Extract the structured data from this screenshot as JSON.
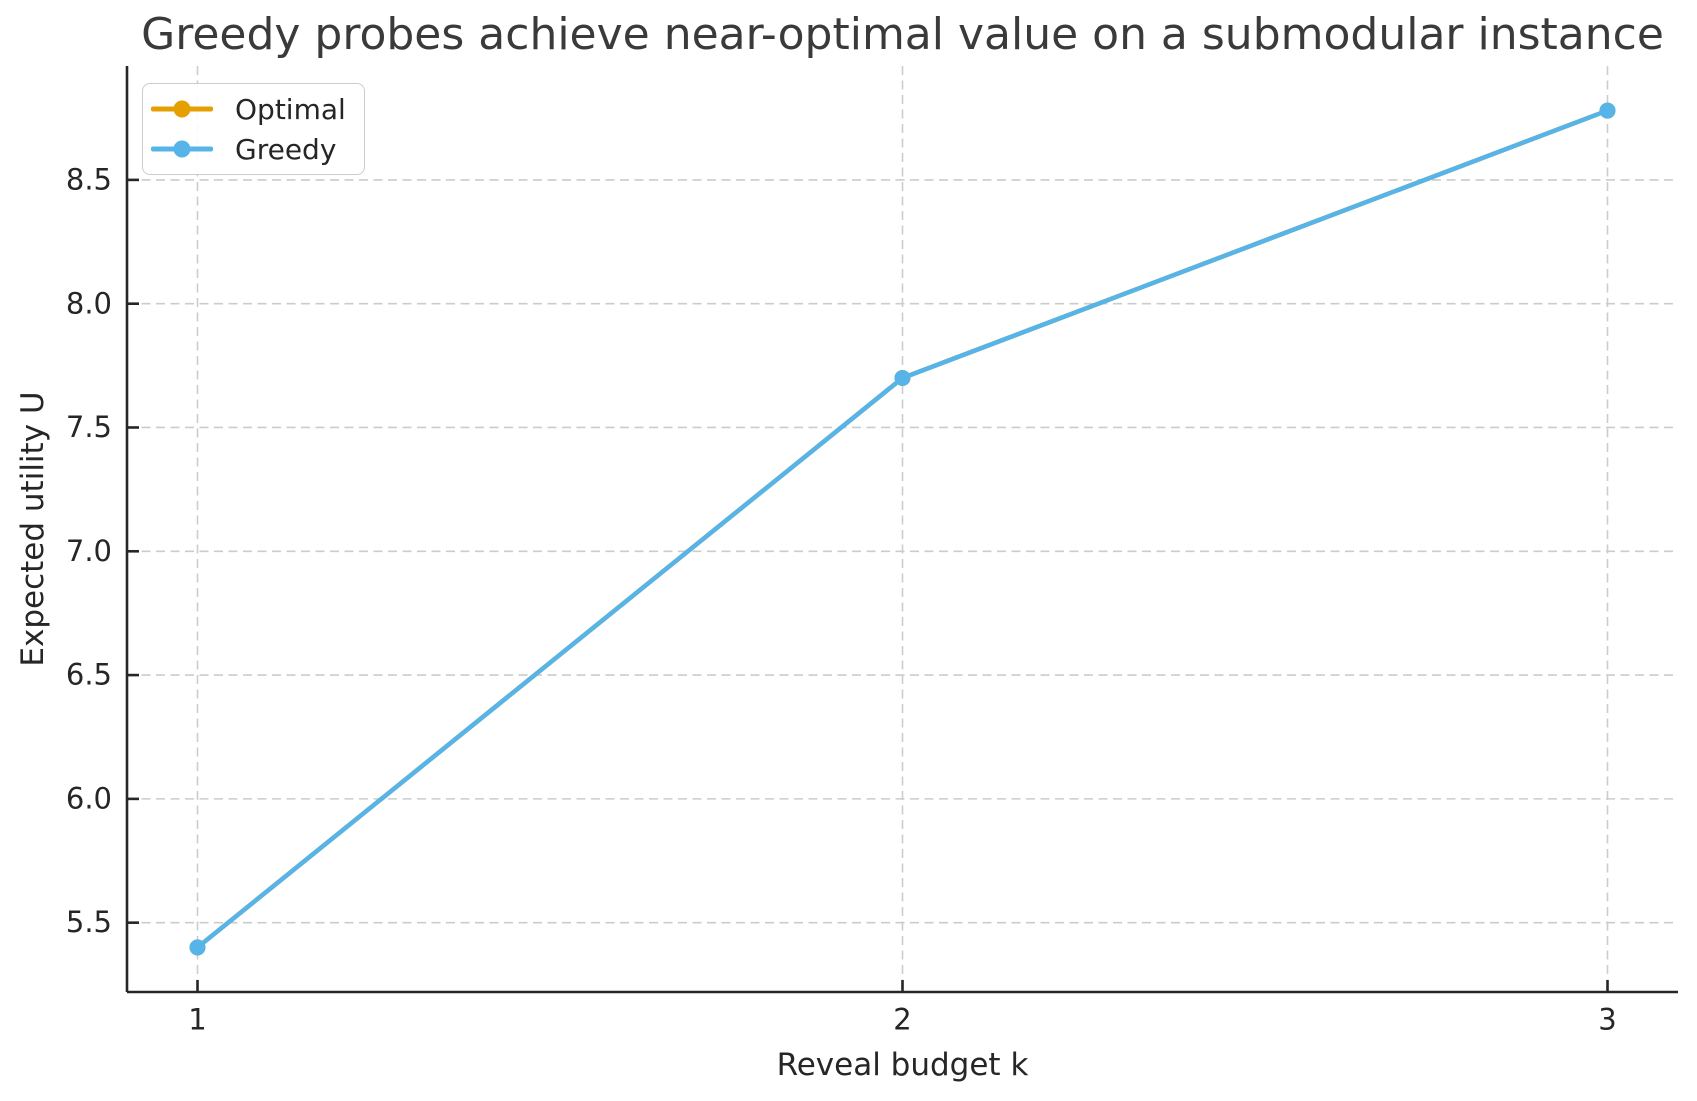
{
  "chart_data": {
    "type": "line",
    "title": "Greedy probes achieve near-optimal value on a submodular instance",
    "xlabel": "Reveal budget k",
    "ylabel": "Expected utility U",
    "x": [
      1,
      2,
      3
    ],
    "series": [
      {
        "name": "Optimal",
        "color": "#E69F00",
        "values": [
          5.4,
          7.7,
          8.78
        ]
      },
      {
        "name": "Greedy",
        "color": "#56B4E9",
        "values": [
          5.4,
          7.7,
          8.78
        ]
      }
    ],
    "xlim": [
      0.9,
      3.1
    ],
    "ylim": [
      5.22,
      8.96
    ],
    "xticks": {
      "values": [
        1,
        2,
        3
      ],
      "labels": [
        "1",
        "2",
        "3"
      ]
    },
    "yticks": {
      "values": [
        5.5,
        6.0,
        6.5,
        7.0,
        7.5,
        8.0,
        8.5
      ],
      "labels": [
        "5.5",
        "6.0",
        "6.5",
        "7.0",
        "7.5",
        "8.0",
        "8.5"
      ]
    },
    "grid": true,
    "legend": {
      "position": "upper left",
      "entries": [
        "Optimal",
        "Greedy"
      ]
    },
    "colors": {
      "grid": "#cccccc",
      "spine": "#262626",
      "tick_text": "#262626",
      "title_text": "#3a3a3a"
    }
  }
}
